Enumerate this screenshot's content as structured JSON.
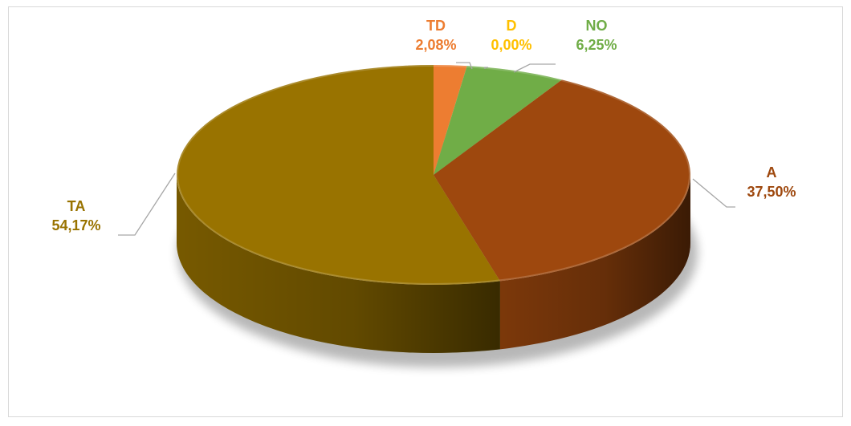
{
  "chart_data": {
    "type": "pie",
    "style": "3d",
    "slices": [
      {
        "label": "TD",
        "value": 2.08,
        "value_text": "2,08%",
        "color": "#ED7D31"
      },
      {
        "label": "D",
        "value": 0.0,
        "value_text": "0,00%",
        "color": "#FFC000"
      },
      {
        "label": "NO",
        "value": 6.25,
        "value_text": "6,25%",
        "color": "#70AD47"
      },
      {
        "label": "A",
        "value": 37.5,
        "value_text": "37,50%",
        "color": "#9E480E"
      },
      {
        "label": "TA",
        "value": 54.17,
        "value_text": "54,17%",
        "color": "#997300"
      }
    ],
    "legend": "none"
  }
}
